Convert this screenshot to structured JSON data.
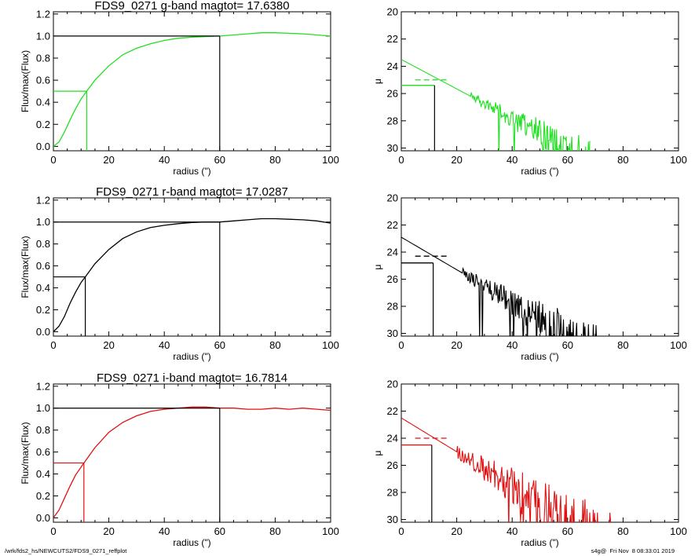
{
  "footer": {
    "path": "/wrk/fds2_hs/NEWCUTS2/FDS9_0271_reffplot",
    "stamp": "s4g@  Fri Nov  8 08:33:01 2019"
  },
  "colors": {
    "g": "#22e022",
    "r": "#000000",
    "i": "#e01010",
    "ref": "#000000"
  },
  "chart_data": [
    {
      "id": "g-growth",
      "type": "line",
      "title": "FDS9_0271 g-band  magtot=     17.6380",
      "xlabel": "radius (\")",
      "ylabel": "Flux/max(Flux)",
      "xlim": [
        0,
        100
      ],
      "ylim": [
        -0.04,
        1.22
      ],
      "xticks": [
        0,
        20,
        40,
        60,
        80,
        100
      ],
      "yticks": [
        0.0,
        0.2,
        0.4,
        0.6,
        0.8,
        1.0,
        1.2
      ],
      "color_key": "g",
      "series": [
        {
          "x": [
            0,
            2,
            4,
            6,
            8,
            10,
            12,
            15,
            20,
            25,
            30,
            35,
            40,
            45,
            50,
            55,
            60,
            65,
            70,
            75,
            80,
            85,
            90,
            95,
            100
          ],
          "y": [
            0.0,
            0.04,
            0.13,
            0.24,
            0.34,
            0.43,
            0.5,
            0.6,
            0.73,
            0.83,
            0.89,
            0.93,
            0.96,
            0.98,
            0.99,
            0.995,
            1.0,
            1.01,
            1.02,
            1.03,
            1.03,
            1.025,
            1.02,
            1.01,
            1.0
          ]
        }
      ],
      "markers": {
        "half_radius": 12,
        "half_level": 0.5,
        "total_radius": 60,
        "total_level": 1.0
      }
    },
    {
      "id": "g-profile",
      "type": "line",
      "title": "",
      "xlabel": "radius (\")",
      "ylabel": "μ",
      "xlim": [
        0,
        100
      ],
      "ylim": [
        30.2,
        20
      ],
      "reversed_y": true,
      "xticks": [
        0,
        20,
        40,
        60,
        80,
        100
      ],
      "yticks": [
        20,
        22,
        24,
        26,
        28,
        30
      ],
      "color_key": "g",
      "profile": {
        "mu0": 23.5,
        "slope": 0.108,
        "noise_start": 25,
        "noise_amp": 0.3,
        "end_radius": 68
      },
      "markers": {
        "re": 12,
        "mu_e": 25.4,
        "mu_mean_e": 25.0,
        "dash_x": [
          5,
          17
        ]
      }
    },
    {
      "id": "r-growth",
      "type": "line",
      "title": "FDS9_0271 r-band  magtot=     17.0287",
      "xlabel": "radius (\")",
      "ylabel": "Flux/max(Flux)",
      "xlim": [
        0,
        100
      ],
      "ylim": [
        -0.04,
        1.22
      ],
      "xticks": [
        0,
        20,
        40,
        60,
        80,
        100
      ],
      "yticks": [
        0.0,
        0.2,
        0.4,
        0.6,
        0.8,
        1.0,
        1.2
      ],
      "color_key": "r",
      "series": [
        {
          "x": [
            0,
            2,
            4,
            6,
            8,
            10,
            11.5,
            15,
            20,
            25,
            30,
            35,
            40,
            45,
            50,
            55,
            60,
            65,
            70,
            75,
            80,
            85,
            90,
            95,
            100
          ],
          "y": [
            0.0,
            0.05,
            0.14,
            0.26,
            0.36,
            0.45,
            0.5,
            0.62,
            0.75,
            0.85,
            0.91,
            0.95,
            0.97,
            0.985,
            0.995,
            1.0,
            1.0,
            1.01,
            1.02,
            1.03,
            1.03,
            1.025,
            1.02,
            1.01,
            0.99
          ]
        }
      ],
      "markers": {
        "half_radius": 11.5,
        "half_level": 0.5,
        "total_radius": 60,
        "total_level": 1.0
      }
    },
    {
      "id": "r-profile",
      "type": "line",
      "title": "",
      "xlabel": "radius (\")",
      "ylabel": "μ",
      "xlim": [
        0,
        100
      ],
      "ylim": [
        30.2,
        20
      ],
      "reversed_y": true,
      "xticks": [
        0,
        20,
        40,
        60,
        80,
        100
      ],
      "yticks": [
        20,
        22,
        24,
        26,
        28,
        30
      ],
      "color_key": "r",
      "profile": {
        "mu0": 22.9,
        "slope": 0.12,
        "noise_start": 22,
        "noise_amp": 0.35,
        "end_radius": 74
      },
      "markers": {
        "re": 11.5,
        "mu_e": 24.8,
        "mu_mean_e": 24.3,
        "dash_x": [
          5,
          17
        ]
      }
    },
    {
      "id": "i-growth",
      "type": "line",
      "title": "FDS9_0271 i-band  magtot=     16.7814",
      "xlabel": "radius (\")",
      "ylabel": "Flux/max(Flux)",
      "xlim": [
        0,
        100
      ],
      "ylim": [
        -0.04,
        1.22
      ],
      "xticks": [
        0,
        20,
        40,
        60,
        80,
        100
      ],
      "yticks": [
        0.0,
        0.2,
        0.4,
        0.6,
        0.8,
        1.0,
        1.2
      ],
      "color_key": "i",
      "series": [
        {
          "x": [
            0,
            2,
            4,
            6,
            8,
            11,
            15,
            20,
            25,
            30,
            35,
            40,
            45,
            50,
            55,
            60,
            65,
            70,
            75,
            80,
            85,
            90,
            95,
            100
          ],
          "y": [
            0.0,
            0.07,
            0.18,
            0.29,
            0.39,
            0.5,
            0.64,
            0.78,
            0.87,
            0.93,
            0.97,
            0.99,
            1.0,
            1.01,
            1.01,
            1.0,
            1.0,
            0.99,
            0.99,
            1.0,
            0.99,
            1.0,
            0.99,
            0.98
          ]
        }
      ],
      "markers": {
        "half_radius": 11,
        "half_level": 0.5,
        "total_radius": 60,
        "total_level": 1.0
      }
    },
    {
      "id": "i-profile",
      "type": "line",
      "title": "",
      "xlabel": "radius (\")",
      "ylabel": "μ",
      "xlim": [
        0,
        100
      ],
      "ylim": [
        30.2,
        20
      ],
      "reversed_y": true,
      "xticks": [
        0,
        20,
        40,
        60,
        80,
        100
      ],
      "yticks": [
        20,
        22,
        24,
        26,
        28,
        30
      ],
      "color_key": "i",
      "profile": {
        "mu0": 22.5,
        "slope": 0.125,
        "noise_start": 20,
        "noise_amp": 0.45,
        "end_radius": 76
      },
      "markers": {
        "re": 11,
        "mu_e": 24.5,
        "mu_mean_e": 24.0,
        "dash_x": [
          5,
          17
        ]
      }
    }
  ]
}
